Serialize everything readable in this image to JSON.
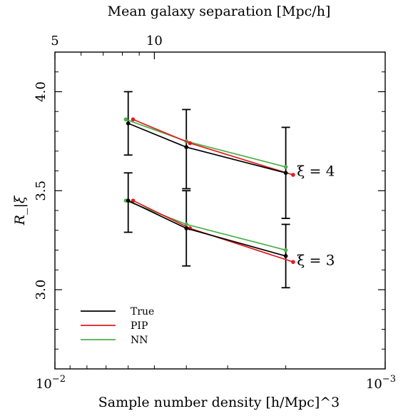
{
  "chart_data": {
    "type": "line",
    "title": "",
    "xlabel": "Sample number density [h/Mpc]^3",
    "ylabel": "R_|ξ",
    "top_xlabel": "Mean galaxy separation [Mpc/h]",
    "x_scale": "log",
    "x_reversed": true,
    "xlim": [
      0.01,
      0.001
    ],
    "ylim": [
      2.6,
      4.2
    ],
    "grid": false,
    "legend_position": "lower-left",
    "bottom_ticks": [
      {
        "value": 0.01,
        "base": "10",
        "exp": "−2"
      },
      {
        "value": 0.001,
        "base": "10",
        "exp": "−3"
      }
    ],
    "top_ticks": [
      {
        "value": 5,
        "label": "5"
      },
      {
        "value": 10,
        "label": "10"
      }
    ],
    "y_ticks": [
      {
        "value": 3.0,
        "label": "3.0"
      },
      {
        "value": 3.5,
        "label": "3.5"
      },
      {
        "value": 4.0,
        "label": "4.0"
      }
    ],
    "series": [
      {
        "name": "True",
        "color": "#000000",
        "group": "xi4",
        "x": [
          0.006,
          0.004,
          0.002
        ],
        "y": [
          3.84,
          3.72,
          3.59
        ]
      },
      {
        "name": "PIP",
        "color": "#e41a1c",
        "group": "xi4",
        "x": [
          0.0058,
          0.0039,
          0.0019
        ],
        "y": [
          3.86,
          3.74,
          3.58
        ]
      },
      {
        "name": "NN",
        "color": "#4daf4a",
        "group": "xi4",
        "x": [
          0.0061,
          0.004,
          0.002
        ],
        "y": [
          3.86,
          3.75,
          3.62
        ]
      },
      {
        "name": "True",
        "color": "#000000",
        "group": "xi3",
        "x": [
          0.006,
          0.004,
          0.002
        ],
        "y": [
          3.45,
          3.31,
          3.17
        ]
      },
      {
        "name": "PIP",
        "color": "#e41a1c",
        "group": "xi3",
        "x": [
          0.0058,
          0.0039,
          0.0019
        ],
        "y": [
          3.45,
          3.31,
          3.14
        ]
      },
      {
        "name": "NN",
        "color": "#4daf4a",
        "group": "xi3",
        "x": [
          0.0061,
          0.004,
          0.002
        ],
        "y": [
          3.45,
          3.33,
          3.2
        ]
      }
    ],
    "error_bars": [
      {
        "x": 0.006,
        "y": 3.84,
        "lo": 3.68,
        "hi": 4.0
      },
      {
        "x": 0.004,
        "y": 3.72,
        "lo": 3.51,
        "hi": 3.91
      },
      {
        "x": 0.002,
        "y": 3.59,
        "lo": 3.36,
        "hi": 3.82
      },
      {
        "x": 0.006,
        "y": 3.45,
        "lo": 3.29,
        "hi": 3.59
      },
      {
        "x": 0.004,
        "y": 3.31,
        "lo": 3.12,
        "hi": 3.5
      },
      {
        "x": 0.002,
        "y": 3.17,
        "lo": 3.01,
        "hi": 3.33
      }
    ],
    "annotations": [
      {
        "text": "ξ = 4",
        "x": 0.00185,
        "y": 3.6
      },
      {
        "text": "ξ = 3",
        "x": 0.00185,
        "y": 3.15
      }
    ],
    "legend": [
      {
        "label": "True",
        "color": "#000000"
      },
      {
        "label": "PIP",
        "color": "#e41a1c"
      },
      {
        "label": "NN",
        "color": "#4daf4a"
      }
    ]
  }
}
